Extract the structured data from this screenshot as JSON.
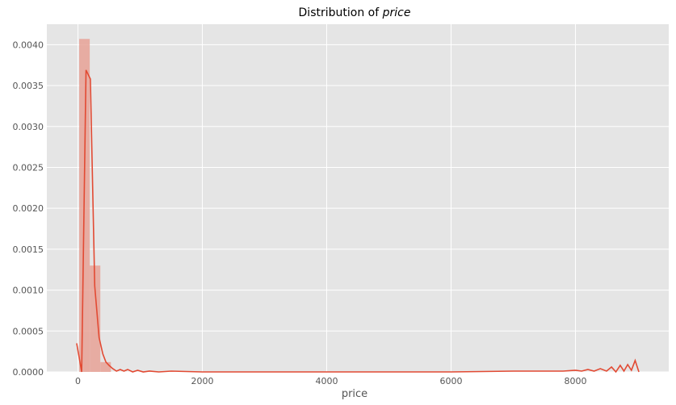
{
  "chart_data": {
    "type": "bar",
    "title_prefix": "Distribution of ",
    "title_var": "price",
    "xlabel": "price",
    "ylabel": "",
    "xlim": [
      -500,
      9500
    ],
    "ylim": [
      0,
      0.00425
    ],
    "grid": true,
    "background": "#e5e5e5",
    "colors": {
      "histogram": "#e8a296",
      "kde": "#e24a33",
      "grid": "#ffffff"
    },
    "x_ticks": [
      {
        "value": 0,
        "label": "0"
      },
      {
        "value": 2000,
        "label": "2000"
      },
      {
        "value": 4000,
        "label": "4000"
      },
      {
        "value": 6000,
        "label": "6000"
      },
      {
        "value": 8000,
        "label": "8000"
      }
    ],
    "y_ticks": [
      {
        "value": 0,
        "label": "0.0000"
      },
      {
        "value": 0.0005,
        "label": "0.0005"
      },
      {
        "value": 0.001,
        "label": "0.0010"
      },
      {
        "value": 0.0015,
        "label": "0.0015"
      },
      {
        "value": 0.002,
        "label": "0.0020"
      },
      {
        "value": 0.0025,
        "label": "0.0025"
      },
      {
        "value": 0.003,
        "label": "0.0030"
      },
      {
        "value": 0.0035,
        "label": "0.0035"
      },
      {
        "value": 0.004,
        "label": "0.0040"
      }
    ],
    "histogram": [
      {
        "x0": 20,
        "x1": 190,
        "density": 0.00407
      },
      {
        "x0": 190,
        "x1": 360,
        "density": 0.0013
      },
      {
        "x0": 360,
        "x1": 530,
        "density": 0.00012
      }
    ],
    "kde": {
      "x": [
        -20,
        60,
        130,
        200,
        270,
        340,
        400,
        450,
        500,
        560,
        620,
        680,
        740,
        800,
        880,
        960,
        1050,
        1150,
        1300,
        1500,
        2000,
        3000,
        4000,
        5000,
        6000,
        7000,
        7500,
        7800,
        8000,
        8100,
        8200,
        8300,
        8400,
        8500,
        8580,
        8650,
        8720,
        8780,
        8840,
        8900,
        8960,
        9020
      ],
      "y": [
        0.00035,
        0.0,
        0.00369,
        0.00358,
        0.00105,
        0.00042,
        0.00022,
        0.00012,
        8e-05,
        4e-05,
        1e-05,
        3e-05,
        1e-05,
        3e-05,
        0.0,
        2e-05,
        0.0,
        1e-05,
        0.0,
        1e-05,
        0.0,
        0.0,
        0.0,
        0.0,
        0.0,
        1e-05,
        1e-05,
        1e-05,
        2e-05,
        1e-05,
        3e-05,
        1e-05,
        4e-05,
        1e-05,
        6e-05,
        0.0,
        8e-05,
        1e-05,
        9e-05,
        2e-05,
        0.00014,
        0.0
      ]
    }
  }
}
